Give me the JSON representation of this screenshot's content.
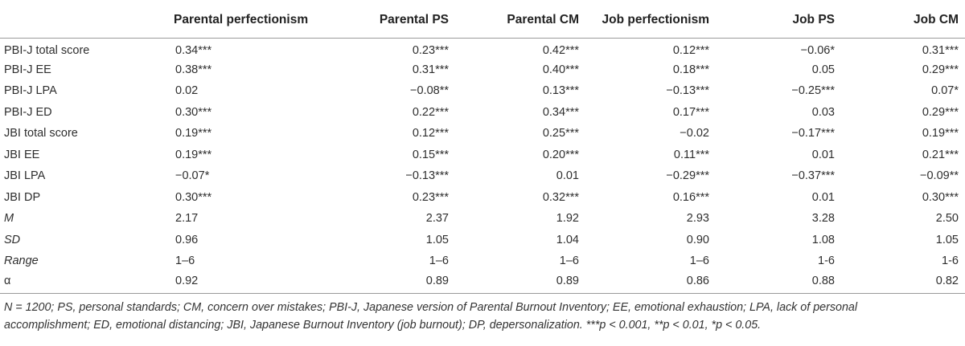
{
  "table": {
    "columns": [
      "",
      "Parental perfectionism",
      "Parental PS",
      "Parental CM",
      "Job perfectionism",
      "Job PS",
      "Job CM"
    ],
    "rows": [
      {
        "label": "PBI-J total score",
        "italic": false,
        "values": [
          "0.34***",
          "0.23***",
          "0.42***",
          "0.12***",
          "−0.06*",
          "0.31***"
        ]
      },
      {
        "label": "PBI-J EE",
        "italic": false,
        "values": [
          "0.38***",
          "0.31***",
          "0.40***",
          "0.18***",
          "0.05",
          "0.29***"
        ]
      },
      {
        "label": "PBI-J LPA",
        "italic": false,
        "values": [
          "0.02",
          "−0.08**",
          "0.13***",
          "−0.13***",
          "−0.25***",
          "0.07*"
        ]
      },
      {
        "label": "PBI-J ED",
        "italic": false,
        "values": [
          "0.30***",
          "0.22***",
          "0.34***",
          "0.17***",
          "0.03",
          "0.29***"
        ]
      },
      {
        "label": "JBI total score",
        "italic": false,
        "values": [
          "0.19***",
          "0.12***",
          "0.25***",
          "−0.02",
          "−0.17***",
          "0.19***"
        ]
      },
      {
        "label": "JBI EE",
        "italic": false,
        "values": [
          "0.19***",
          "0.15***",
          "0.20***",
          "0.11***",
          "0.01",
          "0.21***"
        ]
      },
      {
        "label": "JBI LPA",
        "italic": false,
        "values": [
          "−0.07*",
          "−0.13***",
          "0.01",
          "−0.29***",
          "−0.37***",
          "−0.09**"
        ]
      },
      {
        "label": "JBI DP",
        "italic": false,
        "values": [
          "0.30***",
          "0.23***",
          "0.32***",
          "0.16***",
          "0.01",
          "0.30***"
        ]
      },
      {
        "label": "M",
        "italic": true,
        "values": [
          "2.17",
          "2.37",
          "1.92",
          "2.93",
          "3.28",
          "2.50"
        ]
      },
      {
        "label": "SD",
        "italic": true,
        "values": [
          "0.96",
          "1.05",
          "1.04",
          "0.90",
          "1.08",
          "1.05"
        ]
      },
      {
        "label": "Range",
        "italic": true,
        "values": [
          "1–6",
          "1–6",
          "1–6",
          "1–6",
          "1-6",
          "1-6"
        ]
      },
      {
        "label": "α",
        "italic": false,
        "values": [
          "0.92",
          "0.89",
          "0.89",
          "0.86",
          "0.88",
          "0.82"
        ]
      }
    ]
  },
  "footnote": {
    "line1": "N = 1200; PS, personal standards; CM, concern over mistakes; PBI-J, Japanese version of Parental Burnout Inventory; EE, emotional exhaustion; LPA, lack of personal",
    "line2": "accomplishment; ED, emotional distancing; JBI, Japanese Burnout Inventory (job burnout); DP, depersonalization. ***p < 0.001, **p < 0.01, *p < 0.05."
  }
}
